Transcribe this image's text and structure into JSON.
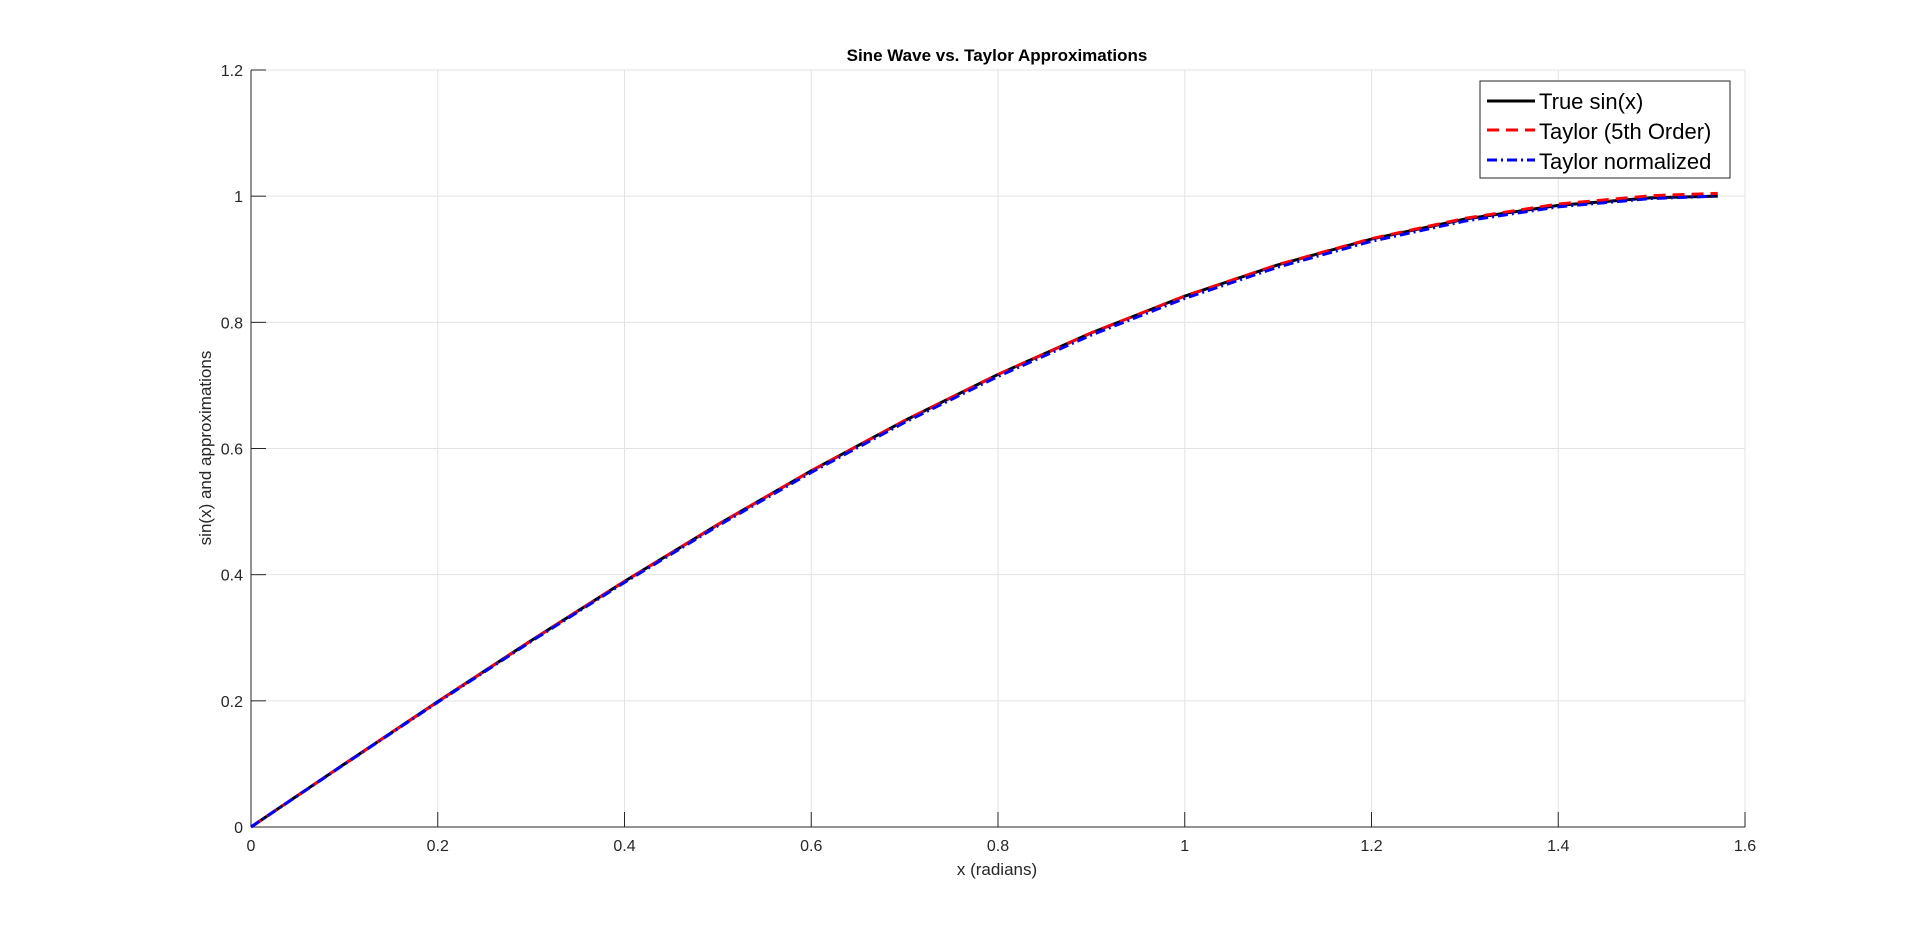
{
  "chart_data": {
    "type": "line",
    "title": "Sine Wave vs. Taylor Approximations",
    "xlabel": "x (radians)",
    "ylabel": "sin(x) and approximations",
    "xlim": [
      0,
      1.6
    ],
    "ylim": [
      0,
      1.2
    ],
    "xticks": [
      0,
      0.2,
      0.4,
      0.6,
      0.8,
      1,
      1.2,
      1.4,
      1.6
    ],
    "xtick_labels": [
      "0",
      "0.2",
      "0.4",
      "0.6",
      "0.8",
      "1",
      "1.2",
      "1.4",
      "1.6"
    ],
    "yticks": [
      0,
      0.2,
      0.4,
      0.6,
      0.8,
      1,
      1.2
    ],
    "ytick_labels": [
      "0",
      "0.2",
      "0.4",
      "0.6",
      "0.8",
      "1",
      "1.2"
    ],
    "grid": true,
    "legend_position": "top-right",
    "x": [
      0,
      0.1,
      0.2,
      0.3,
      0.4,
      0.5,
      0.6,
      0.7,
      0.8,
      0.9,
      1.0,
      1.1,
      1.2,
      1.3,
      1.4,
      1.5,
      1.5708
    ],
    "series": [
      {
        "name": "True sin(x)",
        "color": "#000000",
        "line_style": "solid",
        "values": [
          0,
          0.0998,
          0.1987,
          0.2955,
          0.3894,
          0.4794,
          0.5646,
          0.6442,
          0.7174,
          0.7833,
          0.8415,
          0.8912,
          0.932,
          0.9636,
          0.9854,
          0.9975,
          1.0
        ]
      },
      {
        "name": "Taylor (5th Order)",
        "color": "#ff0000",
        "line_style": "dashed",
        "values": [
          0,
          0.0998,
          0.1987,
          0.2955,
          0.3894,
          0.4794,
          0.5646,
          0.6442,
          0.7174,
          0.7834,
          0.8417,
          0.8916,
          0.9327,
          0.9648,
          0.9875,
          1.0008,
          1.0045
        ]
      },
      {
        "name": "Taylor normalized",
        "color": "#0000ff",
        "line_style": "dash-dot",
        "values": [
          0,
          0.0994,
          0.1978,
          0.2942,
          0.3877,
          0.4773,
          0.5621,
          0.6413,
          0.7142,
          0.7799,
          0.8379,
          0.8876,
          0.9285,
          0.9605,
          0.9831,
          0.9963,
          1.0
        ]
      }
    ]
  }
}
